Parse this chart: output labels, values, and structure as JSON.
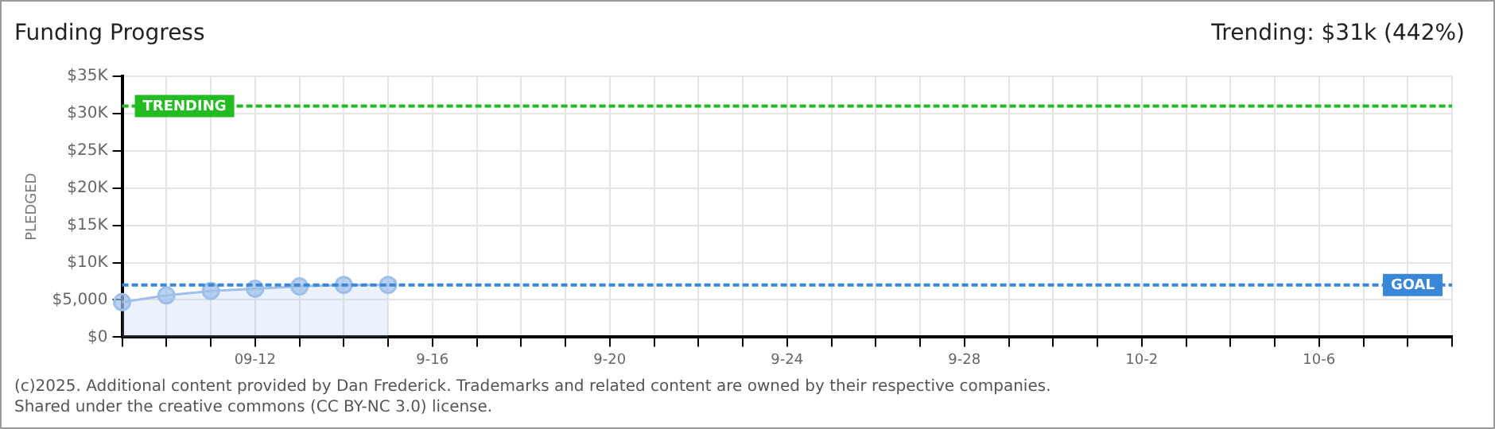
{
  "chart_data": {
    "type": "area",
    "title": "Funding Progress",
    "ylabel": "PLEDGED",
    "categories": [
      null,
      null,
      null,
      "09-12",
      null,
      null,
      null,
      "9-16",
      null,
      null,
      null,
      "9-20",
      null,
      null,
      null,
      "9-24",
      null,
      null,
      null,
      "9-28",
      null,
      null,
      null,
      "10-2",
      null,
      null,
      null,
      "10-6",
      null,
      null,
      null
    ],
    "series": [
      {
        "color": "#9dbfea",
        "values": [
          4700,
          5600,
          6200,
          6500,
          6800,
          7000,
          7000,
          null,
          null,
          null,
          null,
          null,
          null,
          null,
          null,
          null,
          null,
          null,
          null,
          null,
          null,
          null,
          null,
          null,
          null,
          null,
          null,
          null,
          null,
          null,
          null
        ]
      }
    ],
    "ylim": [
      0,
      35000
    ],
    "yticks": [
      {
        "value": 0,
        "label": "$0"
      },
      {
        "value": 5000,
        "label": "$5,000"
      },
      {
        "value": 10000,
        "label": "$10K"
      },
      {
        "value": 15000,
        "label": "$15K"
      },
      {
        "value": 20000,
        "label": "$20K"
      },
      {
        "value": 25000,
        "label": "$25K"
      },
      {
        "value": 30000,
        "label": "$30K"
      },
      {
        "value": 35000,
        "label": "$35K"
      }
    ],
    "ref_lines": [
      {
        "axis": "y",
        "value": 31000,
        "label": "TRENDING",
        "color": "#22bb22",
        "line_style": "dashed"
      },
      {
        "axis": "y",
        "value": 7000,
        "label": "GOAL",
        "color": "#3a87d8",
        "line_style": "dashed"
      }
    ],
    "annotations": [
      "Trending: $31k (442%)",
      "(c)2025. Additional content provided by Dan Frederick. Trademarks and related content are owned by their respective companies.",
      "Shared under the creative commons (CC BY-NC 3.0) license."
    ],
    "grid": true,
    "legend": false,
    "marker": "circle",
    "line_style": "solid"
  }
}
